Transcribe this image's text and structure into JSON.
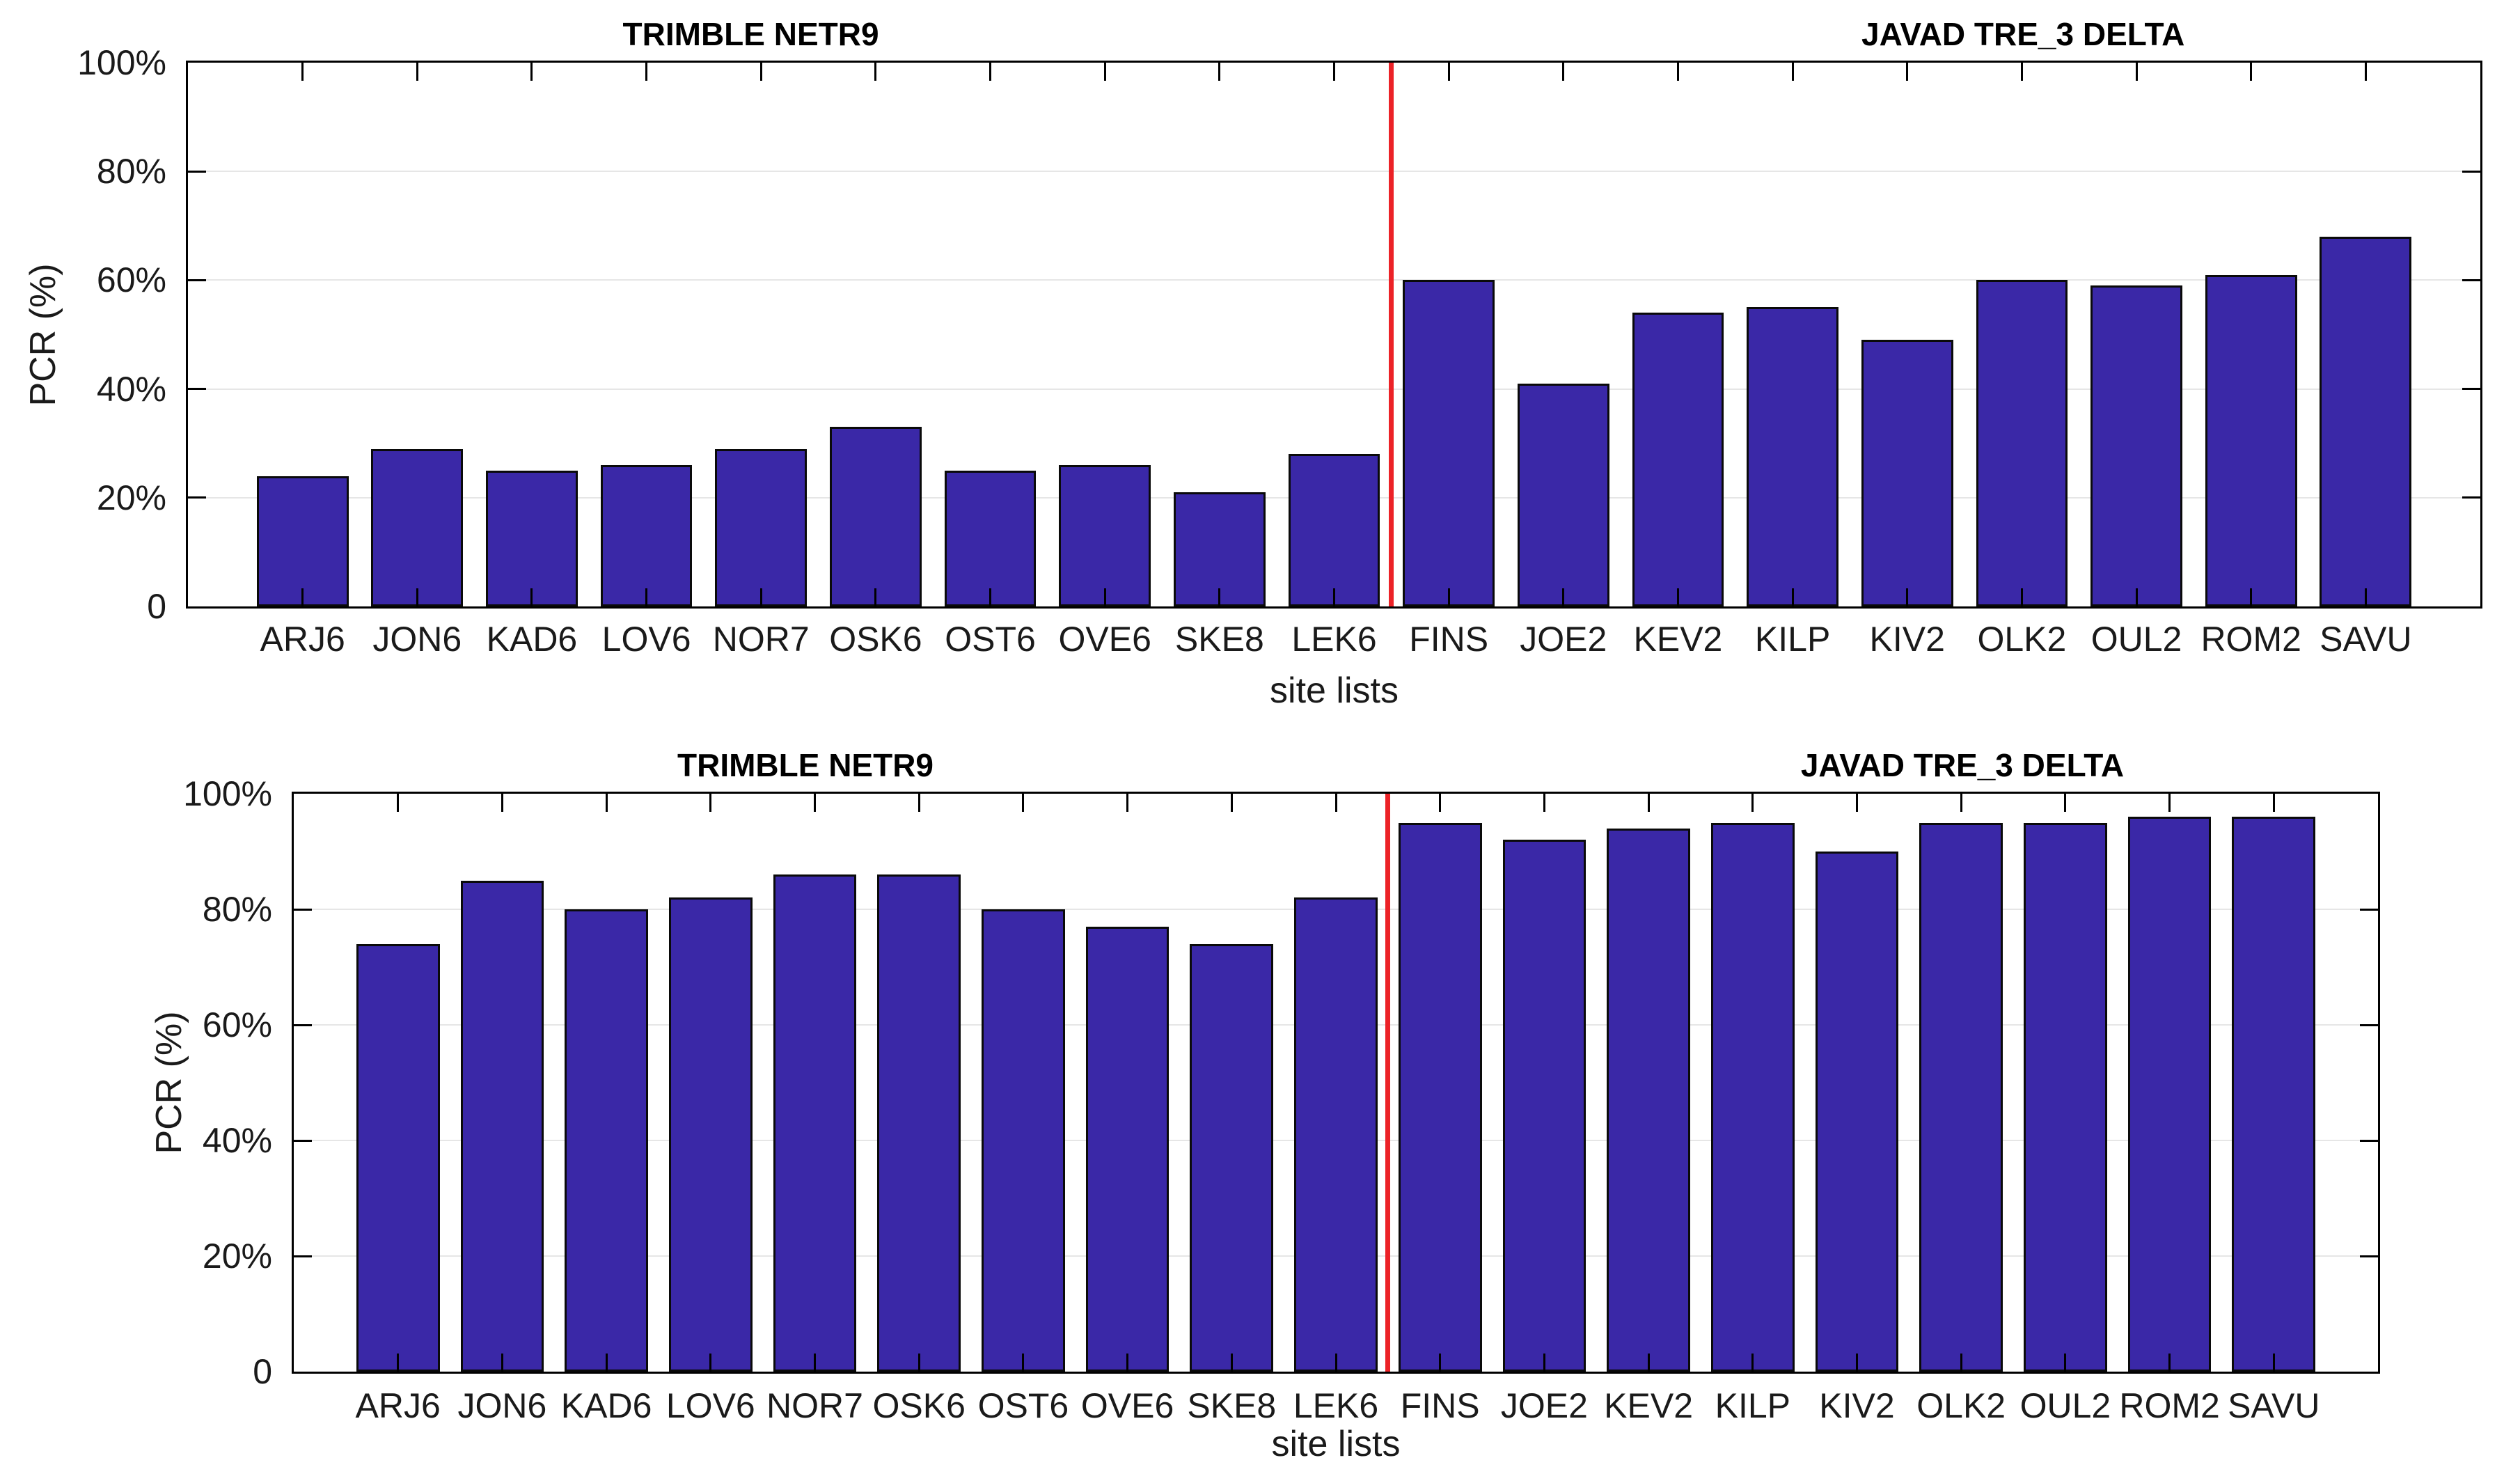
{
  "figure": {
    "background": "#FFFFFF",
    "bar_color": "#3A28A7",
    "bar_edge_color": "#0A0A0A",
    "grid_color": "#E6E6E6",
    "axis_color": "#000000",
    "tick_label_color": "#1A1A1A",
    "divider_color": "#EC2227"
  },
  "chart_data": [
    {
      "type": "bar",
      "position": "top",
      "group_titles": [
        "TRIMBLE NETR9",
        "JAVAD TRE_3 DELTA"
      ],
      "ylabel": "PCR (%)",
      "xlabel": "site lists",
      "ylim": [
        0,
        100
      ],
      "ytick_labels": [
        "100%",
        "80%",
        "60%",
        "40%",
        "20%",
        "0"
      ],
      "grid": true,
      "legend": "none",
      "divider_after_index": 10,
      "categories": [
        "ARJ6",
        "JON6",
        "KAD6",
        "LOV6",
        "NOR7",
        "OSK6",
        "OST6",
        "OVE6",
        "SKE8",
        "LEK6",
        "FINS",
        "JOE2",
        "KEV2",
        "KILP",
        "KIV2",
        "OLK2",
        "OUL2",
        "ROM2",
        "SAVU"
      ],
      "values": [
        24,
        29,
        25,
        26,
        29,
        33,
        25,
        26,
        21,
        28,
        60,
        41,
        54,
        55,
        49,
        60,
        59,
        61,
        68
      ]
    },
    {
      "type": "bar",
      "position": "bottom",
      "group_titles": [
        "TRIMBLE NETR9",
        "JAVAD TRE_3 DELTA"
      ],
      "ylabel": "PCR (%)",
      "xlabel": "site lists",
      "ylim": [
        0,
        100
      ],
      "ytick_labels": [
        "100%",
        "80%",
        "60%",
        "40%",
        "20%",
        "0"
      ],
      "grid": true,
      "legend": "none",
      "divider_after_index": 10,
      "categories": [
        "ARJ6",
        "JON6",
        "KAD6",
        "LOV6",
        "NOR7",
        "OSK6",
        "OST6",
        "OVE6",
        "SKE8",
        "LEK6",
        "FINS",
        "JOE2",
        "KEV2",
        "KILP",
        "KIV2",
        "OLK2",
        "OUL2",
        "ROM2",
        "SAVU"
      ],
      "values": [
        74,
        85,
        80,
        82,
        86,
        86,
        80,
        77,
        74,
        82,
        95,
        92,
        94,
        95,
        90,
        95,
        95,
        96,
        96
      ]
    }
  ]
}
